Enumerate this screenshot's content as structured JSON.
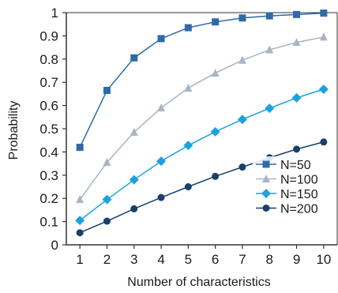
{
  "chart_data": {
    "type": "line",
    "xlabel": "Number of characteristics",
    "ylabel": "Probability",
    "x": [
      1,
      2,
      3,
      4,
      5,
      6,
      7,
      8,
      9,
      10
    ],
    "xlim": [
      0.5,
      10.5
    ],
    "ylim": [
      0,
      1
    ],
    "yticks": [
      "0",
      "0.1",
      "0.2",
      "0.3",
      "0.4",
      "0.5",
      "0.6",
      "0.7",
      "0.8",
      "0.9",
      "1"
    ],
    "grid": false,
    "legend_position": "bottom-right",
    "series": [
      {
        "name": "N=50",
        "marker": "square",
        "color": "#2f6aa8",
        "values": [
          0.42,
          0.665,
          0.805,
          0.888,
          0.935,
          0.96,
          0.977,
          0.986,
          0.992,
          0.998
        ]
      },
      {
        "name": "N=100",
        "marker": "triangle",
        "color": "#a9b5c3",
        "values": [
          0.195,
          0.355,
          0.485,
          0.59,
          0.675,
          0.74,
          0.795,
          0.84,
          0.872,
          0.895
        ]
      },
      {
        "name": "N=150",
        "marker": "diamond",
        "color": "#1aa3e0",
        "values": [
          0.105,
          0.195,
          0.28,
          0.36,
          0.428,
          0.487,
          0.54,
          0.588,
          0.633,
          0.67
        ]
      },
      {
        "name": "N=200",
        "marker": "circle",
        "color": "#18406a",
        "values": [
          0.052,
          0.102,
          0.155,
          0.204,
          0.25,
          0.295,
          0.335,
          0.375,
          0.412,
          0.443
        ]
      }
    ]
  }
}
